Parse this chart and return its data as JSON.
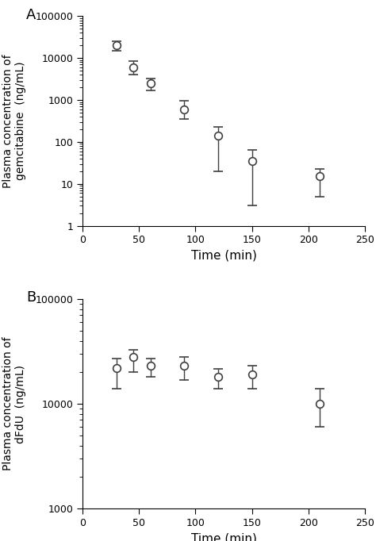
{
  "panel_A": {
    "label": "A",
    "time": [
      30,
      45,
      60,
      90,
      120,
      150,
      210
    ],
    "conc": [
      20000,
      6000,
      2500,
      600,
      140,
      35,
      15
    ],
    "yerr_upper": [
      5000,
      2500,
      800,
      350,
      90,
      30,
      8
    ],
    "yerr_lower": [
      5000,
      2000,
      800,
      250,
      120,
      32,
      10
    ],
    "ylabel_line1": "Plasma concentration of",
    "ylabel_line2": "gemcitabine  (ng/mL)",
    "xlabel": "Time (min)",
    "ylim": [
      1,
      100000
    ],
    "xlim": [
      0,
      250
    ],
    "xticks": [
      0,
      50,
      100,
      150,
      200,
      250
    ]
  },
  "panel_B": {
    "label": "B",
    "time": [
      30,
      45,
      60,
      90,
      120,
      150,
      210
    ],
    "conc": [
      22000,
      28000,
      23000,
      23000,
      18000,
      19000,
      10000
    ],
    "yerr_upper": [
      5000,
      5000,
      4000,
      5000,
      3500,
      4000,
      4000
    ],
    "yerr_lower": [
      8000,
      8000,
      5000,
      6000,
      4000,
      5000,
      4000
    ],
    "ylabel_line1": "Plasma concentration of",
    "ylabel_line2": "dFdU  (ng/mL)",
    "xlabel": "Time (min)",
    "ylim": [
      1000,
      100000
    ],
    "xlim": [
      0,
      250
    ],
    "xticks": [
      0,
      50,
      100,
      150,
      200,
      250
    ]
  },
  "line_color": "#606060",
  "marker_facecolor": "#ffffff",
  "marker_edgecolor": "#404040",
  "marker_size": 7,
  "line_width": 1.2,
  "capsize": 4,
  "elinewidth": 1.0,
  "font_size_tick": 9,
  "font_size_label": 10,
  "font_size_panel": 13,
  "background_color": "#ffffff"
}
